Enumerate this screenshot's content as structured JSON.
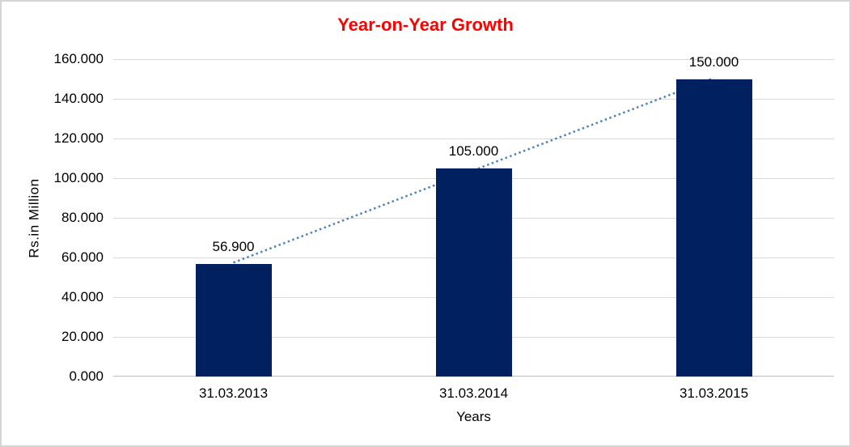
{
  "chart_data": {
    "type": "bar",
    "title": "Year-on-Year Growth",
    "title_color": "#ff0000",
    "categories": [
      "31.03.2013",
      "31.03.2014",
      "31.03.2015"
    ],
    "values": [
      56.9,
      105,
      150
    ],
    "data_labels": [
      "56.900",
      "105.000",
      "150.000"
    ],
    "xlabel": "Years",
    "ylabel": "Rs.in Million",
    "ylim": [
      0,
      160
    ],
    "y_tick_values": [
      0,
      20,
      40,
      60,
      80,
      100,
      120,
      140,
      160
    ],
    "y_tick_labels": [
      "0.000",
      "20.000",
      "40.000",
      "60.000",
      "80.000",
      "100.000",
      "120.000",
      "140.000",
      "160.000"
    ],
    "grid": true,
    "legend": "none",
    "bar_color": "#002060",
    "gridline_color": "#d9d9d9",
    "axis_line_color": "#bfbfbf",
    "trendline": {
      "type": "linear",
      "style": "dotted",
      "color": "#4e81bd"
    }
  }
}
